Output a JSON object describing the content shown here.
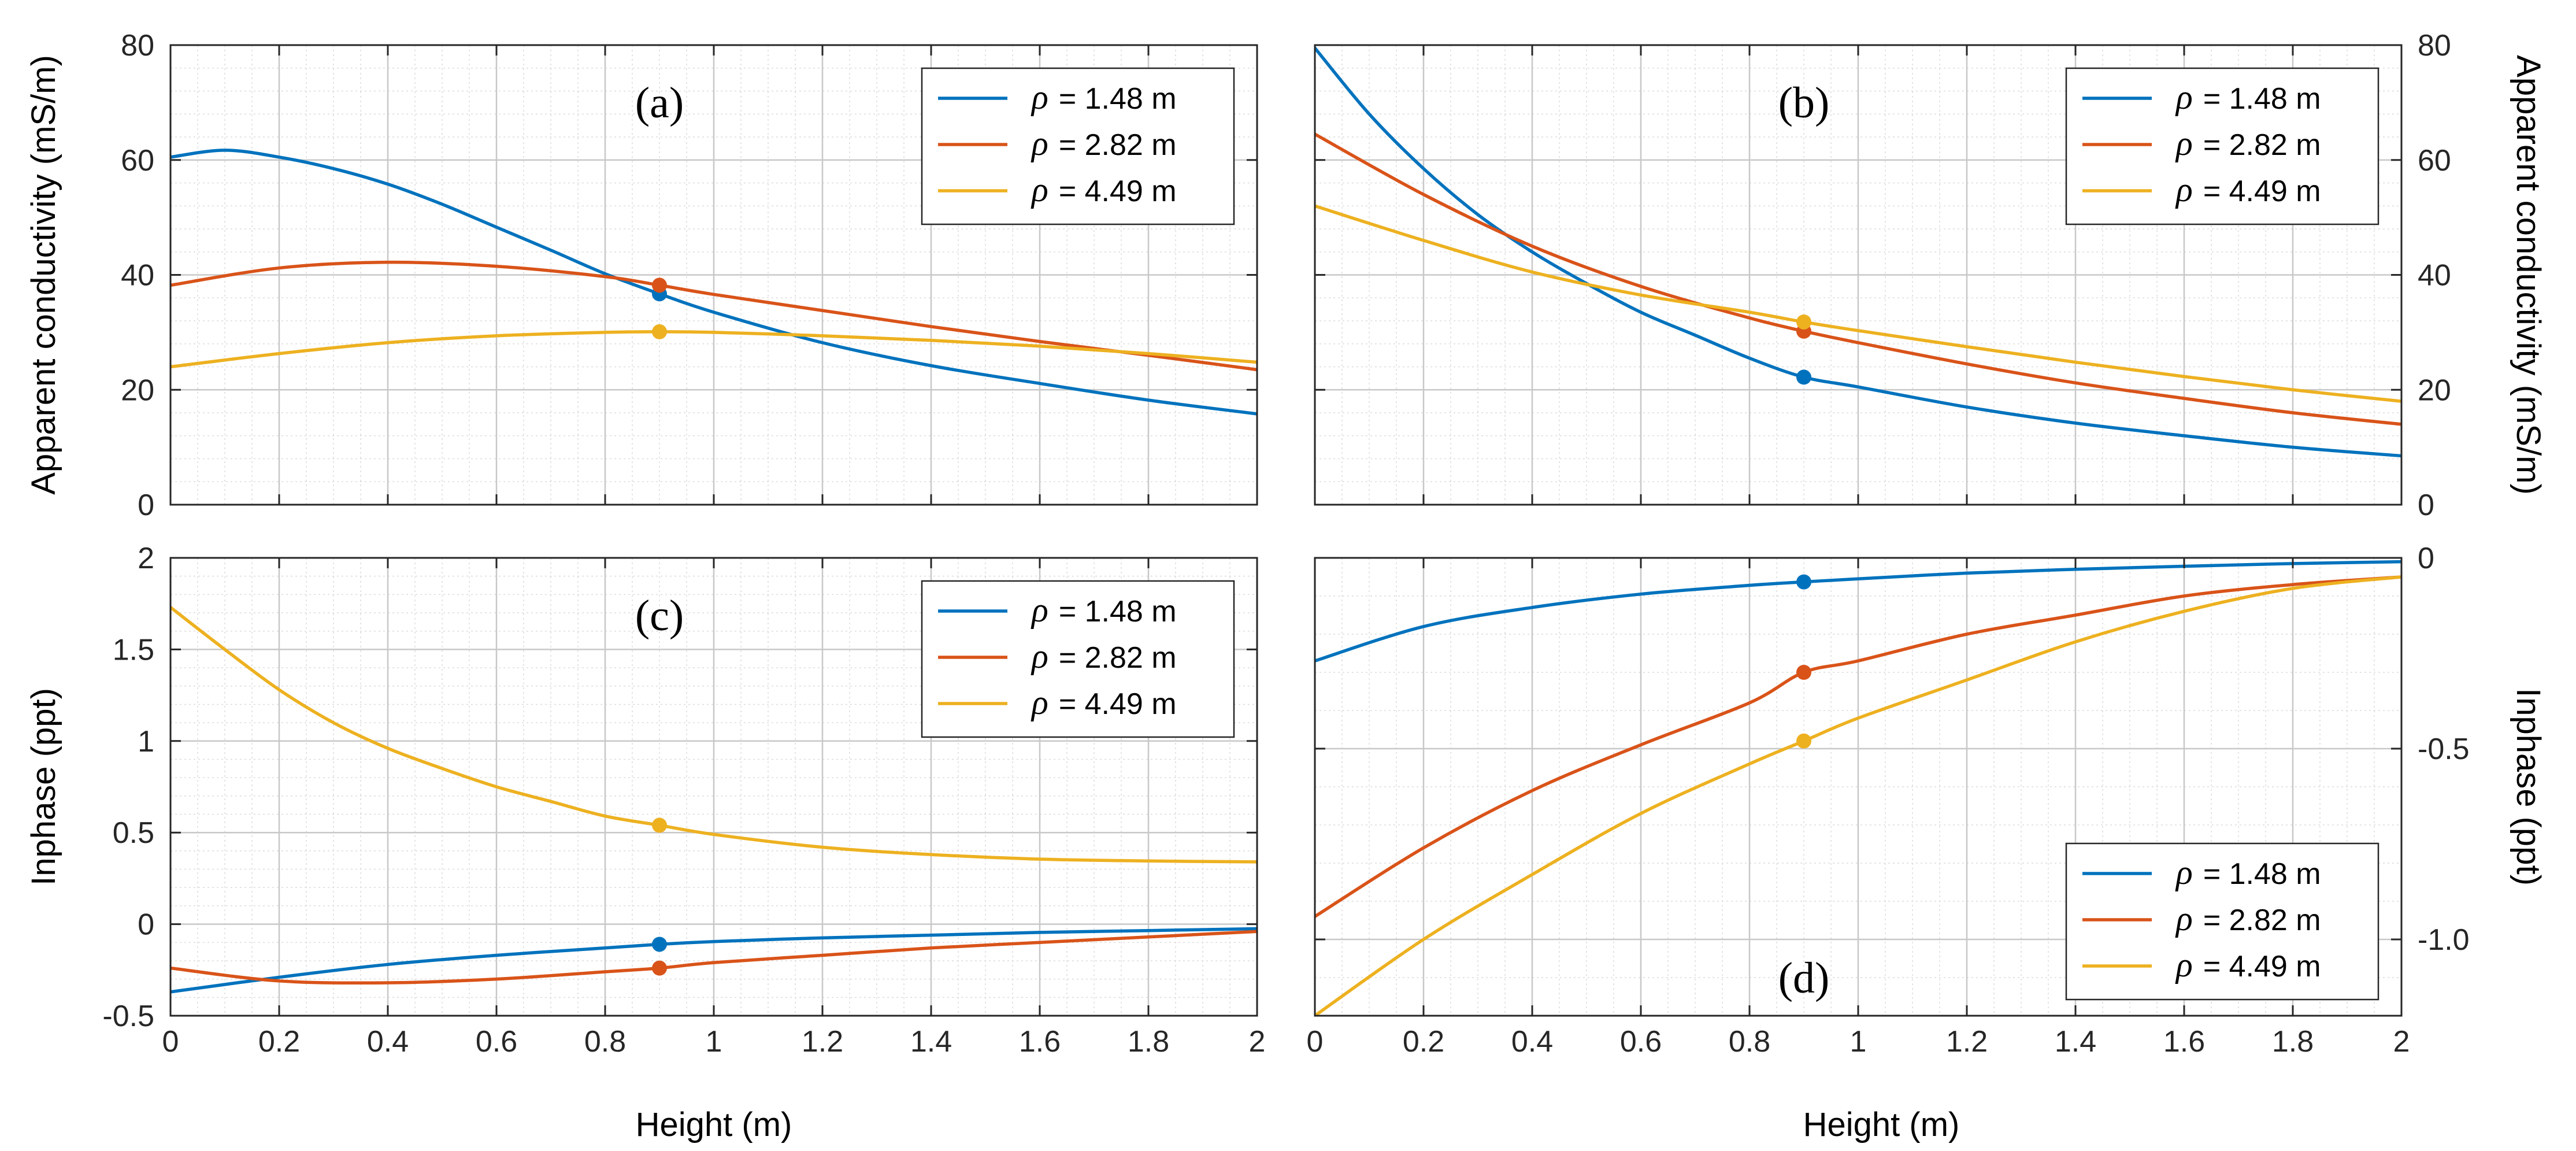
{
  "figure": {
    "xlabel_bottom_left": "Height (m)",
    "xlabel_bottom_right": "Height (m)"
  },
  "legend_symbol": "ρ",
  "chart_data": [
    {
      "panel": "a",
      "type": "line",
      "label": "(a)",
      "xlabel": "",
      "ylabel": "Apparent conductivity (mS/m)",
      "xlim": [
        0,
        2
      ],
      "ylim": [
        0,
        80
      ],
      "xticks": [
        0,
        0.2,
        0.4,
        0.6,
        0.8,
        1,
        1.2,
        1.4,
        1.6,
        1.8,
        2
      ],
      "yticks": [
        0,
        20,
        40,
        60,
        80
      ],
      "ytick_labels": [
        "0",
        "20",
        "40",
        "60",
        "80"
      ],
      "show_xtick_labels": false,
      "yaxis_side": "left",
      "legend_position": "top-right",
      "grid": true,
      "marker_x": 0.9,
      "series": [
        {
          "name": "= 1.48 m",
          "color": "#0072BD",
          "x": [
            0,
            0.1,
            0.2,
            0.3,
            0.4,
            0.5,
            0.6,
            0.7,
            0.8,
            0.9,
            1.0,
            1.2,
            1.4,
            1.6,
            1.8,
            2.0
          ],
          "y": [
            60.5,
            61.7,
            60.5,
            58.5,
            55.8,
            52.3,
            48.3,
            44.3,
            40.2,
            36.7,
            33.5,
            28.2,
            24.2,
            21.1,
            18.2,
            15.8
          ]
        },
        {
          "name": "= 2.82 m",
          "color": "#D95319",
          "x": [
            0,
            0.2,
            0.4,
            0.6,
            0.8,
            0.9,
            1.0,
            1.2,
            1.4,
            1.6,
            1.8,
            2.0
          ],
          "y": [
            38.2,
            41.2,
            42.2,
            41.5,
            39.7,
            38.2,
            36.6,
            33.8,
            31.0,
            28.4,
            26.0,
            23.5
          ]
        },
        {
          "name": "= 4.49 m",
          "color": "#EDB120",
          "x": [
            0,
            0.2,
            0.4,
            0.6,
            0.8,
            0.9,
            1.0,
            1.2,
            1.4,
            1.6,
            1.8,
            2.0
          ],
          "y": [
            24.0,
            26.3,
            28.2,
            29.4,
            30.0,
            30.1,
            30.0,
            29.4,
            28.6,
            27.6,
            26.3,
            24.8
          ]
        }
      ]
    },
    {
      "panel": "b",
      "type": "line",
      "label": "(b)",
      "xlabel": "",
      "ylabel": "Apparent conductivity (mS/m)",
      "xlim": [
        0,
        2
      ],
      "ylim": [
        0,
        80
      ],
      "xticks": [
        0,
        0.2,
        0.4,
        0.6,
        0.8,
        1,
        1.2,
        1.4,
        1.6,
        1.8,
        2
      ],
      "yticks": [
        0,
        20,
        40,
        60,
        80
      ],
      "ytick_labels": [
        "0",
        "20",
        "40",
        "60",
        "80"
      ],
      "show_xtick_labels": false,
      "yaxis_side": "right",
      "legend_position": "top-right",
      "grid": true,
      "marker_x": 0.9,
      "series": [
        {
          "name": "= 1.48 m",
          "color": "#0072BD",
          "x": [
            0,
            0.1,
            0.2,
            0.3,
            0.4,
            0.5,
            0.6,
            0.7,
            0.8,
            0.9,
            1.0,
            1.2,
            1.4,
            1.6,
            1.8,
            2.0
          ],
          "y": [
            79.5,
            68.0,
            58.5,
            50.5,
            44.0,
            38.5,
            33.5,
            29.5,
            25.5,
            22.2,
            20.5,
            17.0,
            14.2,
            12.0,
            10.0,
            8.5
          ]
        },
        {
          "name": "= 2.82 m",
          "color": "#D95319",
          "x": [
            0,
            0.2,
            0.4,
            0.6,
            0.8,
            0.9,
            1.0,
            1.2,
            1.4,
            1.6,
            1.8,
            2.0
          ],
          "y": [
            64.5,
            54.0,
            45.0,
            38.0,
            32.5,
            30.2,
            28.2,
            24.5,
            21.2,
            18.5,
            16.0,
            14.0
          ]
        },
        {
          "name": "= 4.49 m",
          "color": "#EDB120",
          "x": [
            0,
            0.2,
            0.4,
            0.6,
            0.8,
            0.9,
            1.0,
            1.2,
            1.4,
            1.6,
            1.8,
            2.0
          ],
          "y": [
            52.0,
            46.0,
            40.5,
            36.5,
            33.5,
            31.8,
            30.3,
            27.5,
            24.8,
            22.3,
            20.0,
            18.0
          ]
        }
      ]
    },
    {
      "panel": "c",
      "type": "line",
      "label": "(c)",
      "xlabel": "Height (m)",
      "ylabel": "Inphase (ppt)",
      "xlim": [
        0,
        2
      ],
      "ylim": [
        -0.5,
        2
      ],
      "xticks": [
        0,
        0.2,
        0.4,
        0.6,
        0.8,
        1,
        1.2,
        1.4,
        1.6,
        1.8,
        2
      ],
      "xtick_labels": [
        "0",
        "0.2",
        "0.4",
        "0.6",
        "0.8",
        "1",
        "1.2",
        "1.4",
        "1.6",
        "1.8",
        "2"
      ],
      "yticks": [
        -0.5,
        0,
        0.5,
        1,
        1.5,
        2
      ],
      "ytick_labels": [
        "-0.5",
        "0",
        "0.5",
        "1",
        "1.5",
        "2"
      ],
      "show_xtick_labels": true,
      "yaxis_side": "left",
      "legend_position": "top-right",
      "grid": true,
      "marker_x": 0.9,
      "series": [
        {
          "name": "= 1.48 m",
          "color": "#0072BD",
          "x": [
            0,
            0.2,
            0.4,
            0.6,
            0.8,
            0.9,
            1.0,
            1.2,
            1.4,
            1.6,
            1.8,
            2.0
          ],
          "y": [
            -0.37,
            -0.29,
            -0.22,
            -0.17,
            -0.13,
            -0.11,
            -0.095,
            -0.075,
            -0.06,
            -0.045,
            -0.035,
            -0.025
          ]
        },
        {
          "name": "= 2.82 m",
          "color": "#D95319",
          "x": [
            0,
            0.2,
            0.4,
            0.6,
            0.8,
            0.9,
            1.0,
            1.2,
            1.4,
            1.6,
            1.8,
            2.0
          ],
          "y": [
            -0.24,
            -0.31,
            -0.32,
            -0.3,
            -0.26,
            -0.24,
            -0.21,
            -0.17,
            -0.13,
            -0.1,
            -0.07,
            -0.04
          ]
        },
        {
          "name": "= 4.49 m",
          "color": "#EDB120",
          "x": [
            0,
            0.1,
            0.2,
            0.3,
            0.4,
            0.5,
            0.6,
            0.7,
            0.8,
            0.9,
            1.0,
            1.2,
            1.4,
            1.6,
            1.8,
            2.0
          ],
          "y": [
            1.73,
            1.5,
            1.28,
            1.1,
            0.96,
            0.85,
            0.75,
            0.67,
            0.59,
            0.54,
            0.49,
            0.42,
            0.38,
            0.355,
            0.345,
            0.34
          ]
        }
      ]
    },
    {
      "panel": "d",
      "type": "line",
      "label": "(d)",
      "xlabel": "Height (m)",
      "ylabel": "Inphase (ppt)",
      "xlim": [
        0,
        2
      ],
      "ylim": [
        -1.2,
        0
      ],
      "xticks": [
        0,
        0.2,
        0.4,
        0.6,
        0.8,
        1,
        1.2,
        1.4,
        1.6,
        1.8,
        2
      ],
      "xtick_labels": [
        "0",
        "0.2",
        "0.4",
        "0.6",
        "0.8",
        "1",
        "1.2",
        "1.4",
        "1.6",
        "1.8",
        "2"
      ],
      "yticks": [
        -1.0,
        -0.5,
        0
      ],
      "ytick_labels": [
        "-1.0",
        "-0.5",
        "0"
      ],
      "show_xtick_labels": true,
      "yaxis_side": "right",
      "legend_position": "bottom-right",
      "grid": true,
      "marker_x": 0.9,
      "series": [
        {
          "name": "= 1.48 m",
          "color": "#0072BD",
          "x": [
            0,
            0.2,
            0.4,
            0.6,
            0.8,
            0.9,
            1.0,
            1.2,
            1.4,
            1.6,
            1.8,
            2.0
          ],
          "y": [
            -0.27,
            -0.18,
            -0.13,
            -0.095,
            -0.072,
            -0.063,
            -0.055,
            -0.04,
            -0.03,
            -0.022,
            -0.015,
            -0.01
          ]
        },
        {
          "name": "= 2.82 m",
          "color": "#D95319",
          "x": [
            0,
            0.2,
            0.4,
            0.6,
            0.8,
            0.9,
            1.0,
            1.2,
            1.4,
            1.6,
            1.8,
            2.0
          ],
          "y": [
            -0.94,
            -0.76,
            -0.61,
            -0.49,
            -0.38,
            -0.3,
            -0.27,
            -0.2,
            -0.15,
            -0.1,
            -0.07,
            -0.05
          ]
        },
        {
          "name": "= 4.49 m",
          "color": "#EDB120",
          "x": [
            0,
            0.2,
            0.4,
            0.6,
            0.8,
            0.9,
            1.0,
            1.2,
            1.4,
            1.6,
            1.8,
            2.0
          ],
          "y": [
            -1.2,
            -1.0,
            -0.83,
            -0.67,
            -0.54,
            -0.48,
            -0.42,
            -0.32,
            -0.22,
            -0.14,
            -0.08,
            -0.05
          ]
        }
      ]
    }
  ]
}
